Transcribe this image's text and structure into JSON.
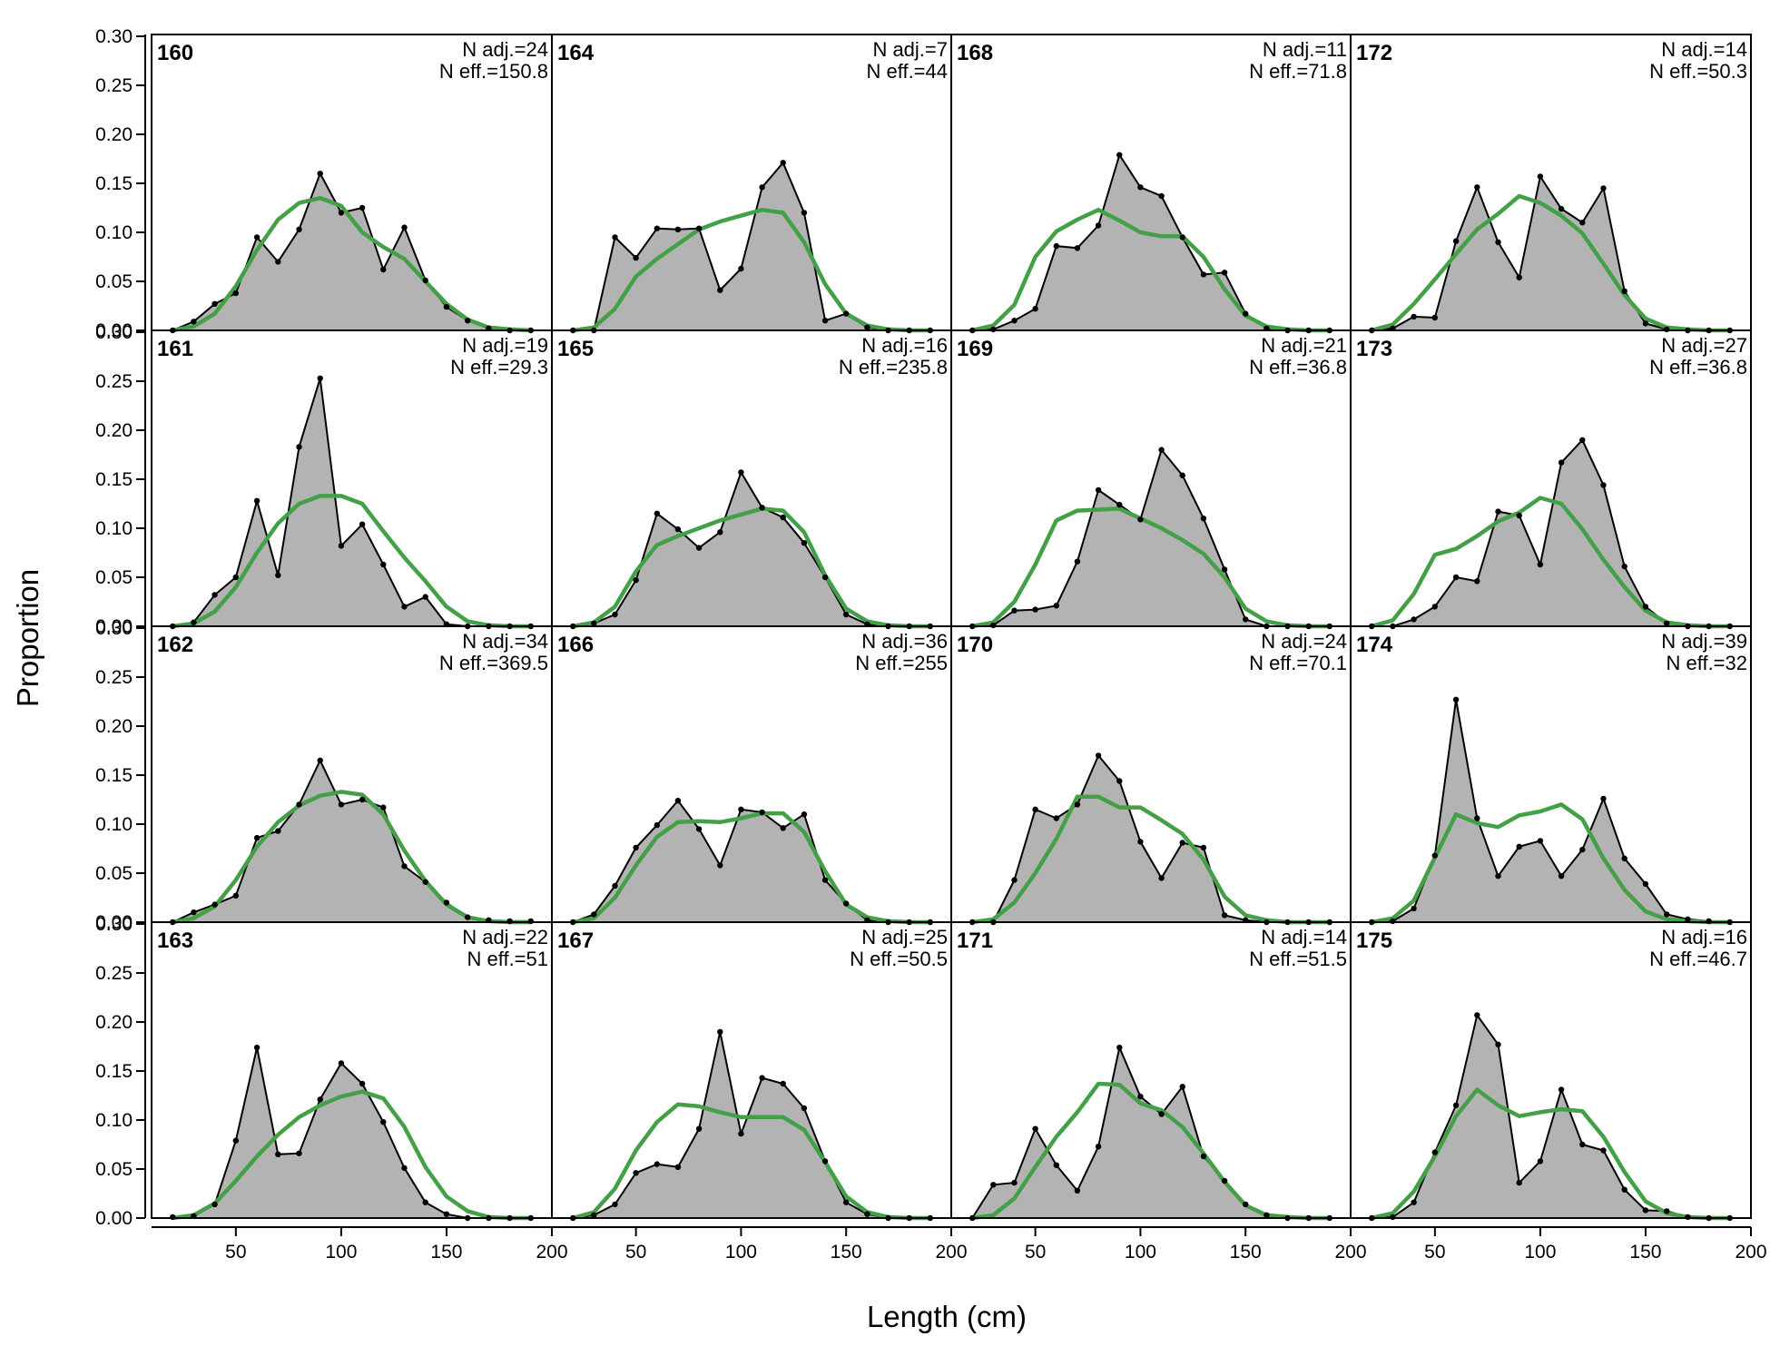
{
  "chart_data": {
    "type": "area",
    "ylabel": "Proportion",
    "xlabel": "Length (cm)",
    "xlim": [
      10,
      200
    ],
    "ylim": [
      0,
      0.3
    ],
    "x_ticks": [
      50,
      100,
      150,
      200
    ],
    "y_ticks": [
      0.0,
      0.05,
      0.1,
      0.15,
      0.2,
      0.25,
      0.3
    ],
    "y_tick_labels": [
      "0.00",
      "0.05",
      "0.10",
      "0.15",
      "0.20",
      "0.25",
      "0.30"
    ],
    "grid": false,
    "layout": {
      "rows": 4,
      "cols": 4,
      "fill_order": "column-major"
    },
    "colors": {
      "observed_fill": "#b3b3b3",
      "observed_line": "#000000",
      "expected_line": "#43a047",
      "baseline": "#bdbdbd"
    },
    "bins": [
      20,
      30,
      40,
      50,
      60,
      70,
      80,
      90,
      100,
      110,
      120,
      130,
      140,
      150,
      160,
      170,
      180,
      190
    ],
    "panels": [
      {
        "id": "160",
        "n_adj": "N adj.=24",
        "n_eff": "N eff.=150.8",
        "observed": [
          0.0,
          0.009,
          0.027,
          0.038,
          0.095,
          0.07,
          0.103,
          0.16,
          0.12,
          0.125,
          0.062,
          0.105,
          0.051,
          0.024,
          0.01,
          0.002,
          0.0,
          0.0
        ],
        "expected": [
          0.0,
          0.004,
          0.017,
          0.045,
          0.082,
          0.113,
          0.13,
          0.135,
          0.127,
          0.1,
          0.085,
          0.073,
          0.05,
          0.027,
          0.011,
          0.003,
          0.001,
          0.0
        ]
      },
      {
        "id": "161",
        "n_adj": "N adj.=19",
        "n_eff": "N eff.=29.3",
        "observed": [
          0.0,
          0.004,
          0.032,
          0.05,
          0.128,
          0.052,
          0.183,
          0.253,
          0.082,
          0.104,
          0.063,
          0.02,
          0.03,
          0.002,
          0.0,
          0.0,
          0.0,
          0.0
        ],
        "expected": [
          0.0,
          0.003,
          0.015,
          0.04,
          0.075,
          0.105,
          0.125,
          0.133,
          0.133,
          0.125,
          0.097,
          0.07,
          0.046,
          0.02,
          0.005,
          0.001,
          0.0,
          0.0
        ]
      },
      {
        "id": "162",
        "n_adj": "N adj.=34",
        "n_eff": "N eff.=369.5",
        "observed": [
          0.0,
          0.01,
          0.018,
          0.027,
          0.086,
          0.093,
          0.12,
          0.165,
          0.12,
          0.125,
          0.117,
          0.057,
          0.041,
          0.02,
          0.005,
          0.002,
          0.001,
          0.001
        ],
        "expected": [
          0.0,
          0.004,
          0.016,
          0.043,
          0.077,
          0.102,
          0.119,
          0.129,
          0.133,
          0.13,
          0.11,
          0.073,
          0.042,
          0.018,
          0.005,
          0.001,
          0.0,
          0.0
        ]
      },
      {
        "id": "163",
        "n_adj": "N adj.=22",
        "n_eff": "N eff.=51",
        "observed": [
          0.001,
          0.002,
          0.014,
          0.079,
          0.174,
          0.065,
          0.066,
          0.121,
          0.158,
          0.137,
          0.098,
          0.051,
          0.016,
          0.004,
          0.0,
          0.0,
          0.0,
          0.0
        ],
        "expected": [
          0.0,
          0.003,
          0.015,
          0.038,
          0.063,
          0.085,
          0.103,
          0.115,
          0.124,
          0.129,
          0.122,
          0.093,
          0.052,
          0.022,
          0.007,
          0.001,
          0.0,
          0.0
        ]
      },
      {
        "id": "164",
        "n_adj": "N adj.=7",
        "n_eff": "N eff.=44",
        "observed": [
          0.0,
          0.0,
          0.095,
          0.074,
          0.104,
          0.103,
          0.104,
          0.041,
          0.063,
          0.146,
          0.171,
          0.12,
          0.01,
          0.017,
          0.003,
          0.0,
          0.0,
          0.0
        ],
        "expected": [
          0.0,
          0.003,
          0.022,
          0.055,
          0.073,
          0.088,
          0.103,
          0.111,
          0.117,
          0.123,
          0.12,
          0.09,
          0.047,
          0.017,
          0.005,
          0.001,
          0.0,
          0.0
        ]
      },
      {
        "id": "165",
        "n_adj": "N adj.=16",
        "n_eff": "N eff.=235.8",
        "observed": [
          0.0,
          0.003,
          0.012,
          0.047,
          0.115,
          0.099,
          0.08,
          0.096,
          0.157,
          0.121,
          0.111,
          0.085,
          0.05,
          0.012,
          0.002,
          0.0,
          0.0,
          0.0
        ],
        "expected": [
          0.0,
          0.004,
          0.02,
          0.056,
          0.083,
          0.092,
          0.1,
          0.108,
          0.114,
          0.12,
          0.118,
          0.096,
          0.052,
          0.018,
          0.005,
          0.001,
          0.0,
          0.0
        ]
      },
      {
        "id": "166",
        "n_adj": "N adj.=36",
        "n_eff": "N eff.=255",
        "observed": [
          0.0,
          0.008,
          0.037,
          0.076,
          0.099,
          0.124,
          0.095,
          0.058,
          0.115,
          0.112,
          0.096,
          0.11,
          0.043,
          0.019,
          0.002,
          0.0,
          0.0,
          0.0
        ],
        "expected": [
          0.0,
          0.004,
          0.025,
          0.058,
          0.087,
          0.102,
          0.103,
          0.102,
          0.106,
          0.111,
          0.111,
          0.092,
          0.052,
          0.018,
          0.005,
          0.001,
          0.0,
          0.0
        ]
      },
      {
        "id": "167",
        "n_adj": "N adj.=25",
        "n_eff": "N eff.=50.5",
        "observed": [
          0.0,
          0.003,
          0.014,
          0.046,
          0.055,
          0.052,
          0.091,
          0.19,
          0.086,
          0.143,
          0.137,
          0.112,
          0.058,
          0.016,
          0.004,
          0.0,
          0.0,
          0.0
        ],
        "expected": [
          0.0,
          0.006,
          0.03,
          0.069,
          0.098,
          0.116,
          0.114,
          0.108,
          0.103,
          0.103,
          0.103,
          0.09,
          0.057,
          0.022,
          0.006,
          0.001,
          0.0,
          0.0
        ]
      },
      {
        "id": "168",
        "n_adj": "N adj.=11",
        "n_eff": "N eff.=71.8",
        "observed": [
          0.0,
          0.001,
          0.01,
          0.022,
          0.086,
          0.084,
          0.107,
          0.179,
          0.146,
          0.137,
          0.095,
          0.057,
          0.059,
          0.017,
          0.002,
          0.0,
          0.0,
          0.0
        ],
        "expected": [
          0.0,
          0.005,
          0.026,
          0.075,
          0.101,
          0.113,
          0.123,
          0.112,
          0.1,
          0.096,
          0.096,
          0.075,
          0.042,
          0.015,
          0.004,
          0.001,
          0.0,
          0.0
        ]
      },
      {
        "id": "169",
        "n_adj": "N adj.=21",
        "n_eff": "N eff.=36.8",
        "observed": [
          0.0,
          0.001,
          0.016,
          0.017,
          0.021,
          0.066,
          0.139,
          0.124,
          0.109,
          0.18,
          0.154,
          0.11,
          0.058,
          0.007,
          0.0,
          0.0,
          0.0,
          0.0
        ],
        "expected": [
          0.0,
          0.004,
          0.025,
          0.063,
          0.108,
          0.118,
          0.119,
          0.12,
          0.11,
          0.1,
          0.088,
          0.074,
          0.05,
          0.018,
          0.005,
          0.001,
          0.0,
          0.0
        ]
      },
      {
        "id": "170",
        "n_adj": "N adj.=24",
        "n_eff": "N eff.=70.1",
        "observed": [
          0.0,
          0.0,
          0.043,
          0.115,
          0.106,
          0.12,
          0.17,
          0.144,
          0.082,
          0.045,
          0.081,
          0.076,
          0.007,
          0.002,
          0.0,
          0.0,
          0.0,
          0.0
        ],
        "expected": [
          0.0,
          0.003,
          0.02,
          0.05,
          0.085,
          0.128,
          0.128,
          0.117,
          0.117,
          0.104,
          0.09,
          0.064,
          0.026,
          0.007,
          0.002,
          0.0,
          0.0,
          0.0
        ]
      },
      {
        "id": "171",
        "n_adj": "N adj.=14",
        "n_eff": "N eff.=51.5",
        "observed": [
          0.0,
          0.034,
          0.036,
          0.091,
          0.054,
          0.028,
          0.073,
          0.174,
          0.124,
          0.106,
          0.134,
          0.063,
          0.038,
          0.014,
          0.003,
          0.0,
          0.0,
          0.0
        ],
        "expected": [
          0.0,
          0.003,
          0.02,
          0.052,
          0.083,
          0.108,
          0.137,
          0.136,
          0.117,
          0.11,
          0.093,
          0.066,
          0.037,
          0.013,
          0.003,
          0.001,
          0.0,
          0.0
        ]
      },
      {
        "id": "172",
        "n_adj": "N adj.=14",
        "n_eff": "N eff.=50.3",
        "observed": [
          0.0,
          0.002,
          0.014,
          0.013,
          0.091,
          0.146,
          0.09,
          0.054,
          0.157,
          0.124,
          0.11,
          0.145,
          0.04,
          0.007,
          0.001,
          0.0,
          0.0,
          0.0
        ],
        "expected": [
          0.0,
          0.006,
          0.027,
          0.052,
          0.078,
          0.103,
          0.119,
          0.137,
          0.13,
          0.117,
          0.099,
          0.068,
          0.036,
          0.012,
          0.003,
          0.001,
          0.0,
          0.0
        ]
      },
      {
        "id": "173",
        "n_adj": "N adj.=27",
        "n_eff": "N eff.=36.8",
        "observed": [
          0.0,
          0.0,
          0.007,
          0.02,
          0.05,
          0.046,
          0.117,
          0.113,
          0.063,
          0.167,
          0.19,
          0.144,
          0.061,
          0.02,
          0.003,
          0.0,
          0.0,
          0.0
        ],
        "expected": [
          0.0,
          0.006,
          0.033,
          0.073,
          0.079,
          0.092,
          0.107,
          0.116,
          0.131,
          0.125,
          0.099,
          0.068,
          0.04,
          0.016,
          0.004,
          0.001,
          0.0,
          0.0
        ]
      },
      {
        "id": "174",
        "n_adj": "N adj.=39",
        "n_eff": "N eff.=32",
        "observed": [
          0.0,
          0.001,
          0.014,
          0.068,
          0.227,
          0.106,
          0.047,
          0.077,
          0.083,
          0.047,
          0.074,
          0.126,
          0.065,
          0.039,
          0.008,
          0.003,
          0.001,
          0.0
        ],
        "expected": [
          0.0,
          0.004,
          0.022,
          0.066,
          0.11,
          0.101,
          0.097,
          0.109,
          0.113,
          0.12,
          0.105,
          0.065,
          0.033,
          0.011,
          0.003,
          0.001,
          0.0,
          0.0
        ]
      },
      {
        "id": "175",
        "n_adj": "N adj.=16",
        "n_eff": "N eff.=46.7",
        "observed": [
          0.0,
          0.001,
          0.016,
          0.067,
          0.115,
          0.207,
          0.177,
          0.036,
          0.058,
          0.131,
          0.075,
          0.069,
          0.029,
          0.008,
          0.007,
          0.001,
          0.0,
          0.0
        ],
        "expected": [
          0.0,
          0.005,
          0.027,
          0.063,
          0.104,
          0.131,
          0.115,
          0.104,
          0.108,
          0.111,
          0.109,
          0.083,
          0.047,
          0.017,
          0.005,
          0.001,
          0.0,
          0.0
        ]
      }
    ]
  }
}
